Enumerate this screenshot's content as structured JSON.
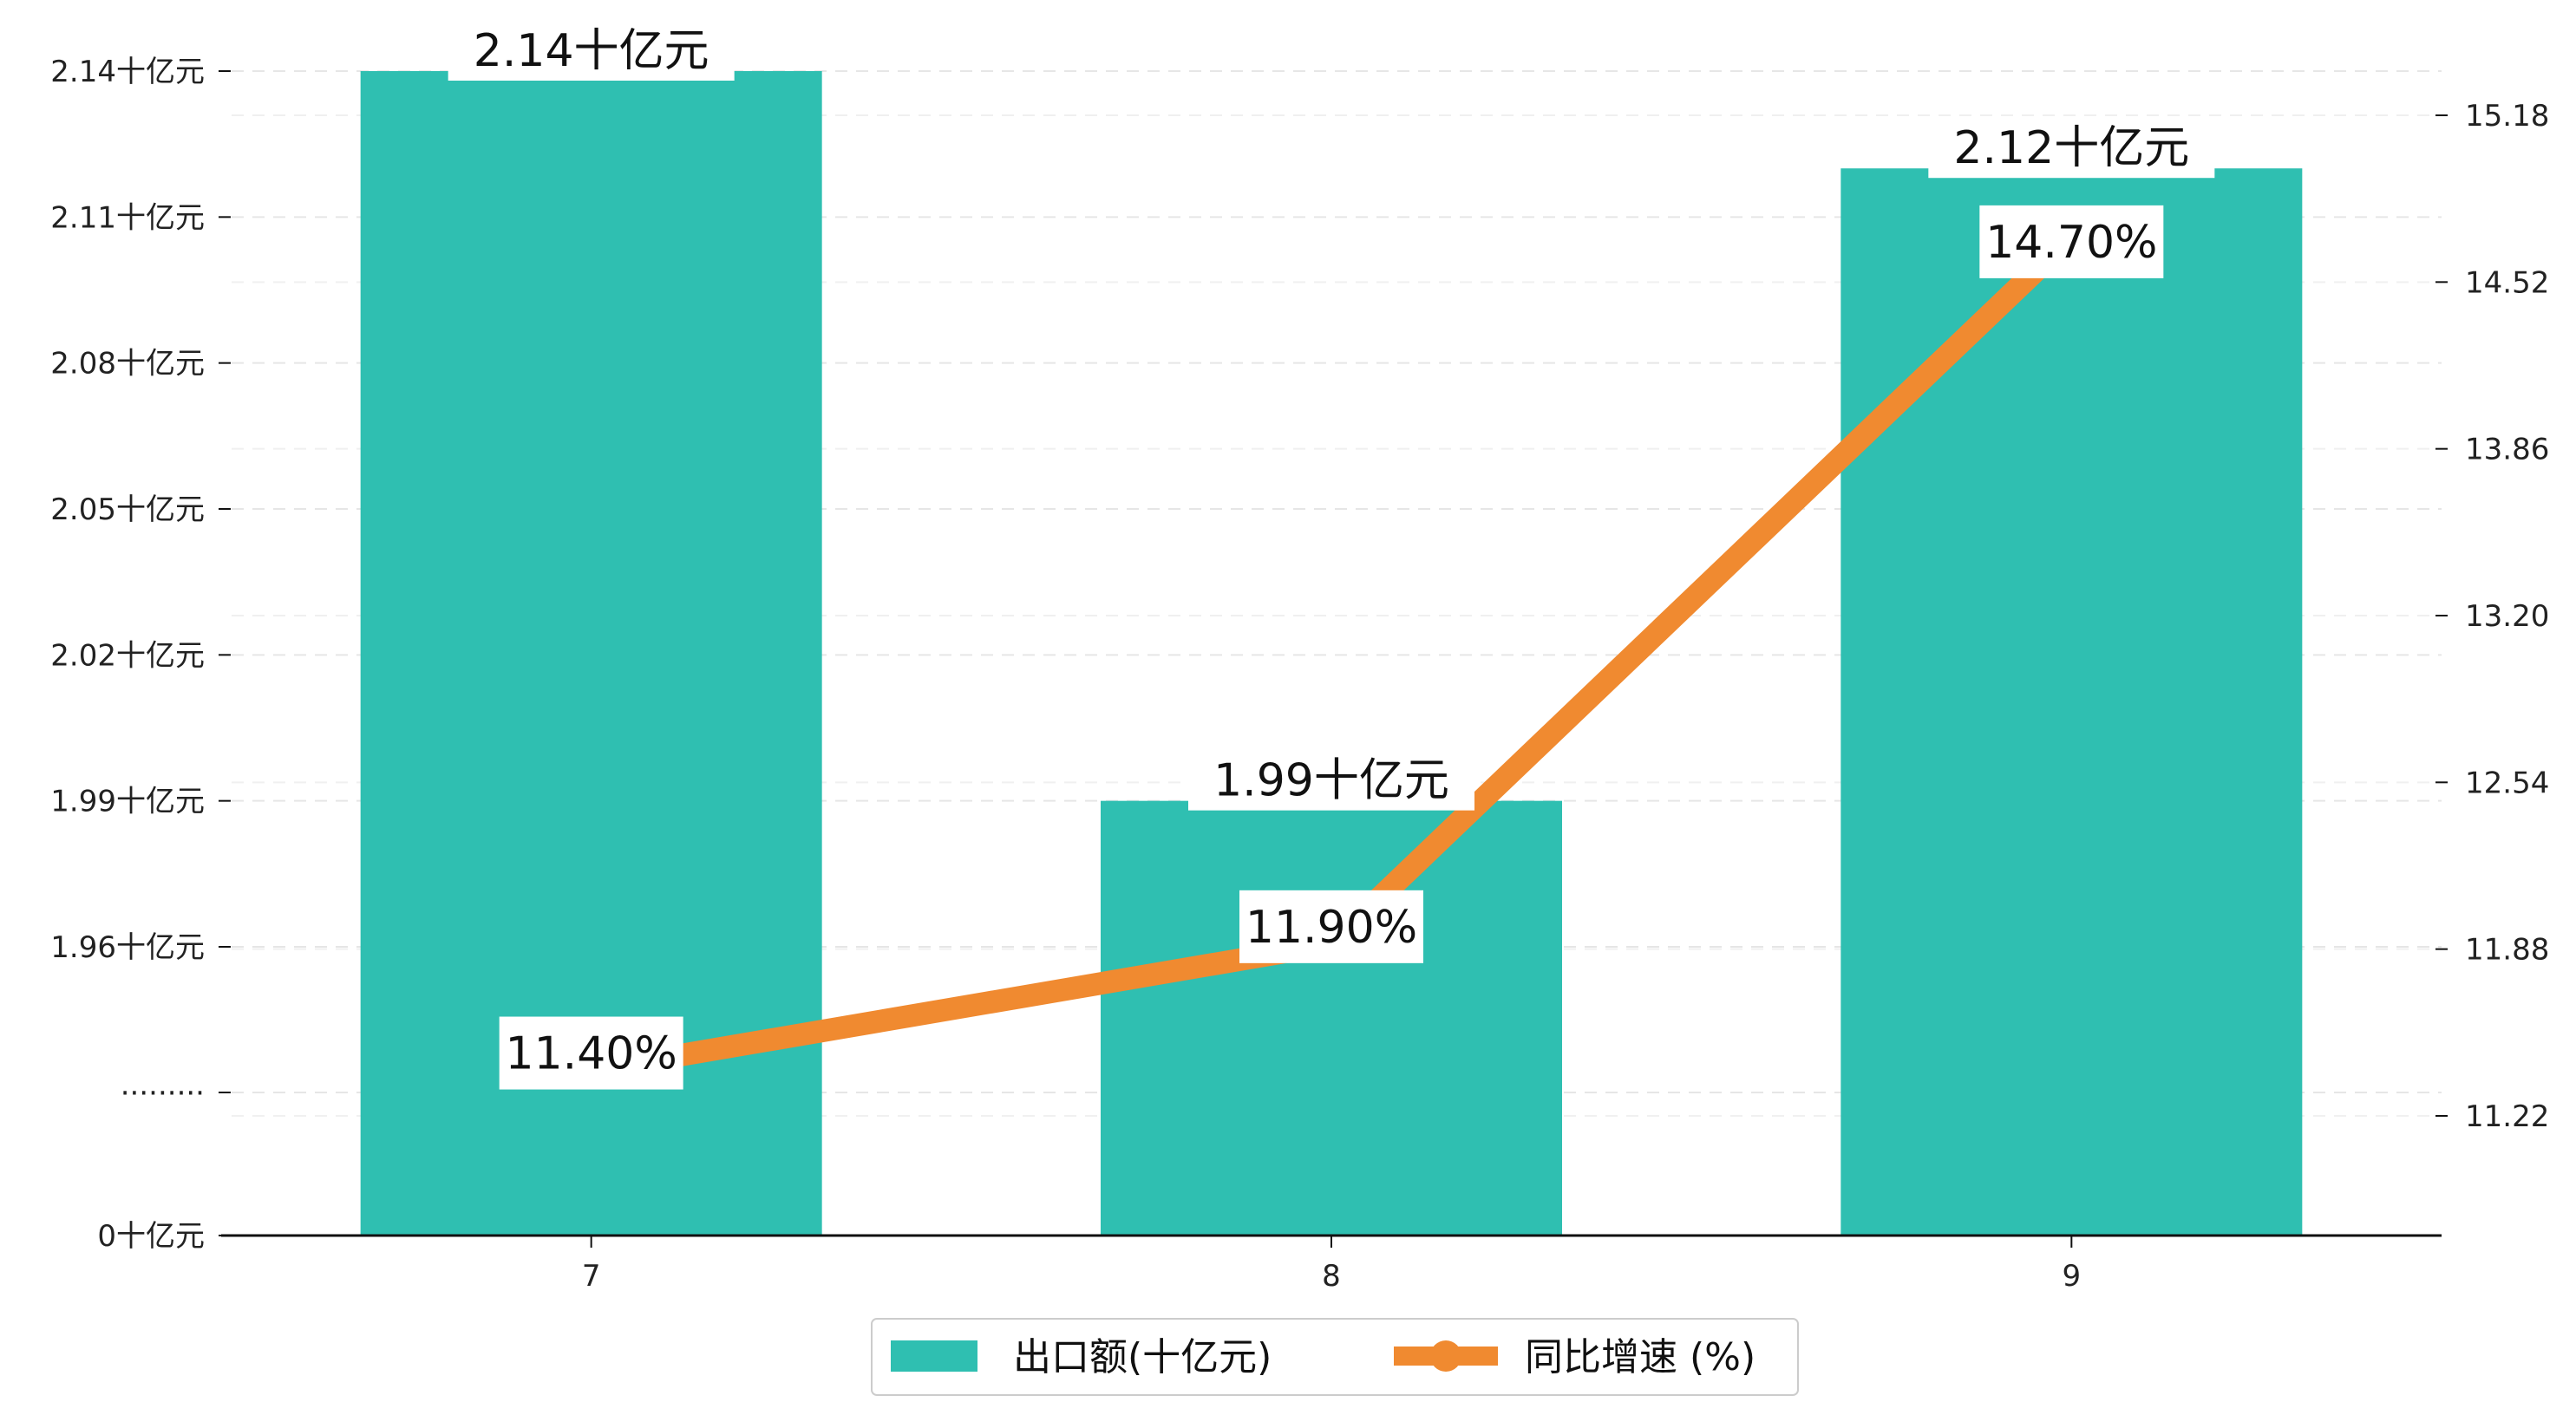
{
  "chart_data": {
    "type": "bar",
    "categories": [
      "7",
      "8",
      "9"
    ],
    "series": [
      {
        "name": "出口额(十亿元)",
        "kind": "bar",
        "axis": "left",
        "color": "#2fbfb1",
        "values": [
          2.14,
          1.99,
          2.12
        ],
        "labels": [
          "2.14十亿元",
          "1.99十亿元",
          "2.12十亿元"
        ]
      },
      {
        "name": "同比增速 (%)",
        "kind": "line",
        "axis": "right",
        "color": "#f08a30",
        "values": [
          11.4,
          11.9,
          14.7
        ],
        "labels": [
          "11.40%",
          "11.90%",
          "14.70%"
        ]
      }
    ],
    "left_axis": {
      "broken": true,
      "ticks": [
        {
          "label": "0十亿元",
          "value": 0
        },
        {
          "label": "·········",
          "value": null
        },
        {
          "label": "1.96十亿元",
          "value": 1.96
        },
        {
          "label": "1.99十亿元",
          "value": 1.99
        },
        {
          "label": "2.02十亿元",
          "value": 2.02
        },
        {
          "label": "2.05十亿元",
          "value": 2.05
        },
        {
          "label": "2.08十亿元",
          "value": 2.08
        },
        {
          "label": "2.11十亿元",
          "value": 2.11
        },
        {
          "label": "2.14十亿元",
          "value": 2.14
        }
      ]
    },
    "right_axis": {
      "ticks": [
        "11.22",
        "11.88",
        "12.54",
        "13.20",
        "13.86",
        "14.52",
        "15.18"
      ],
      "ylim": [
        10.75,
        15.32
      ]
    },
    "grid": "horizontal-dashed",
    "legend_position": "bottom-center"
  }
}
